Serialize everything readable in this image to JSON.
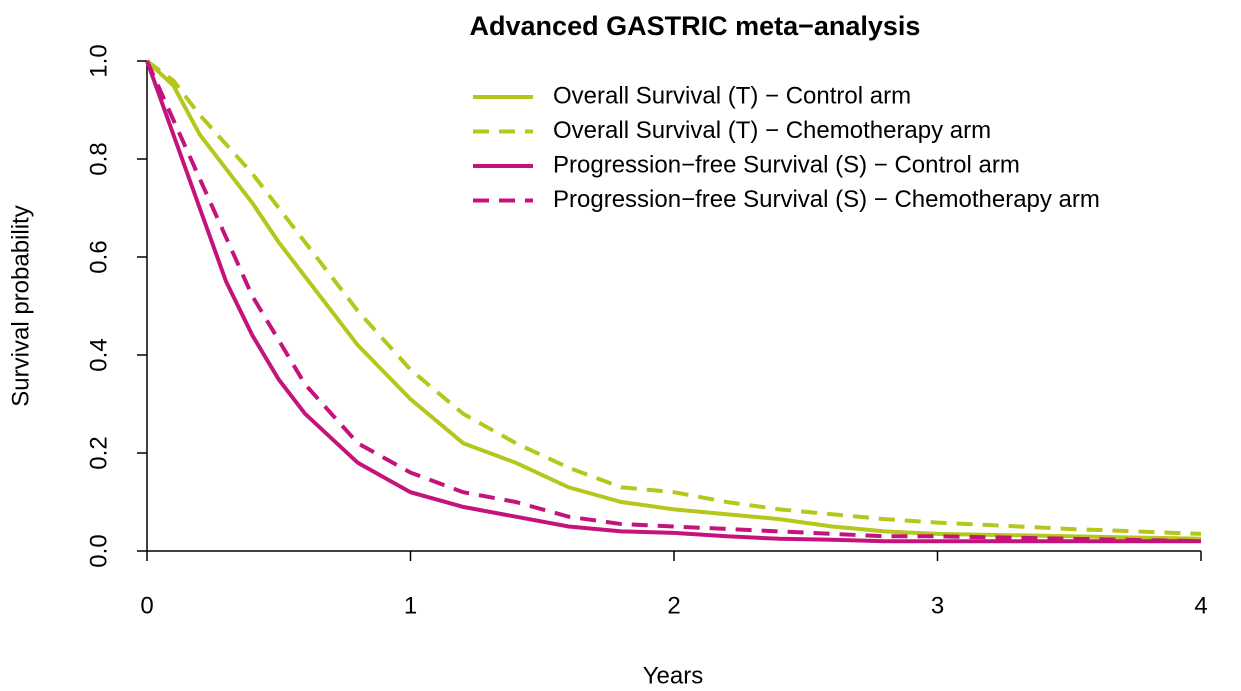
{
  "chart_data": {
    "type": "line",
    "title": "Advanced GASTRIC meta−analysis",
    "x_label": "Years",
    "y_label": "Survival probability",
    "x": [
      0,
      0.1,
      0.2,
      0.3,
      0.4,
      0.5,
      0.6,
      0.8,
      1.0,
      1.2,
      1.4,
      1.6,
      1.8,
      2.0,
      2.2,
      2.4,
      2.6,
      2.8,
      3.0,
      3.5,
      4.0
    ],
    "series": [
      {
        "name": "Overall Survival (T) − Control arm",
        "color": "#b5c71c",
        "dashed": false,
        "values": [
          1,
          0.95,
          0.85,
          0.78,
          0.71,
          0.63,
          0.56,
          0.42,
          0.31,
          0.22,
          0.18,
          0.13,
          0.1,
          0.085,
          0.075,
          0.065,
          0.05,
          0.04,
          0.035,
          0.03,
          0.025
        ]
      },
      {
        "name": "Overall Survival (T) − Chemotherapy arm",
        "color": "#b5c71c",
        "dashed": true,
        "values": [
          1,
          0.96,
          0.89,
          0.83,
          0.77,
          0.7,
          0.63,
          0.49,
          0.37,
          0.28,
          0.22,
          0.17,
          0.13,
          0.12,
          0.1,
          0.085,
          0.075,
          0.065,
          0.058,
          0.045,
          0.035
        ]
      },
      {
        "name": "Progression−free Survival (S) − Control arm",
        "color": "#c5137c",
        "dashed": false,
        "values": [
          1,
          0.85,
          0.7,
          0.55,
          0.44,
          0.35,
          0.28,
          0.18,
          0.12,
          0.09,
          0.07,
          0.05,
          0.04,
          0.037,
          0.03,
          0.025,
          0.023,
          0.02,
          0.02,
          0.02,
          0.02
        ]
      },
      {
        "name": "Progression−free Survival (S) − Chemotherapy arm",
        "color": "#c5137c",
        "dashed": true,
        "values": [
          1,
          0.88,
          0.76,
          0.64,
          0.52,
          0.43,
          0.34,
          0.22,
          0.16,
          0.12,
          0.1,
          0.07,
          0.055,
          0.05,
          0.045,
          0.04,
          0.035,
          0.03,
          0.03,
          0.025,
          0.02
        ]
      }
    ],
    "xlim": [
      0,
      4
    ],
    "xticks": [
      0,
      1,
      2,
      3,
      4
    ],
    "ylim": [
      0,
      1
    ],
    "yticks": [
      {
        "value": 0,
        "label": "0.0"
      },
      0.2,
      0.4,
      0.6,
      0.8,
      {
        "value": 1,
        "label": "1.0"
      }
    ],
    "legend": "top-right"
  }
}
